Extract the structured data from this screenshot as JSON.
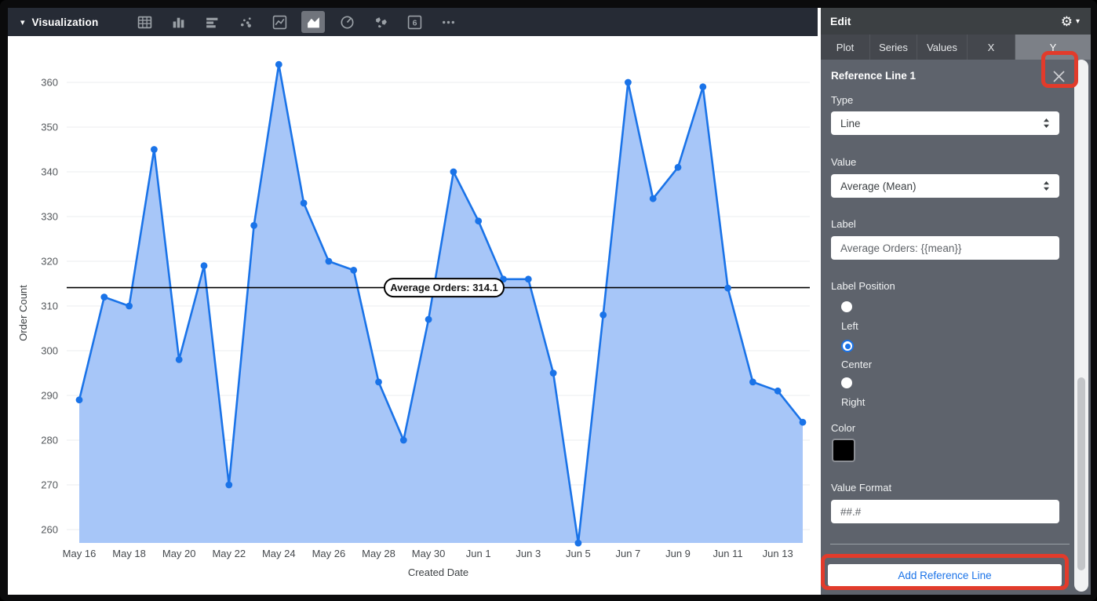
{
  "toolbar": {
    "title": "Visualization",
    "collapse_caret": "▾",
    "chart_type_icons": [
      {
        "name": "table-icon",
        "selected": false
      },
      {
        "name": "bar-chart-icon",
        "selected": false
      },
      {
        "name": "row-chart-icon",
        "selected": false
      },
      {
        "name": "scatter-chart-icon",
        "selected": false
      },
      {
        "name": "line-chart-icon",
        "selected": false
      },
      {
        "name": "area-chart-icon",
        "selected": true
      },
      {
        "name": "pie-chart-icon",
        "selected": false
      },
      {
        "name": "map-chart-icon",
        "selected": false
      },
      {
        "name": "single-value-icon",
        "selected": false
      },
      {
        "name": "more-options-icon",
        "selected": false
      }
    ]
  },
  "panel": {
    "title": "Edit",
    "gear_icon": "⚙",
    "gear_caret": "▾",
    "tabs": [
      {
        "label": "Plot",
        "selected": false
      },
      {
        "label": "Series",
        "selected": false
      },
      {
        "label": "Values",
        "selected": false
      },
      {
        "label": "X",
        "selected": false
      },
      {
        "label": "Y",
        "selected": true
      }
    ],
    "reference_line": {
      "section_title": "Reference Line 1",
      "type_label": "Type",
      "type_value": "Line",
      "value_label": "Value",
      "value_value": "Average (Mean)",
      "label_label": "Label",
      "label_value": "Average Orders: {{mean}}",
      "position_label": "Label Position",
      "position_options": [
        "Left",
        "Center",
        "Right"
      ],
      "position_selected": "Center",
      "color_label": "Color",
      "color_value": "#000000",
      "format_label": "Value Format",
      "format_value": "##.#"
    },
    "add_button_label": "Add Reference Line"
  },
  "chart_data": {
    "type": "area",
    "x": [
      "May 16",
      "May 17",
      "May 18",
      "May 19",
      "May 20",
      "May 21",
      "May 22",
      "May 23",
      "May 24",
      "May 25",
      "May 26",
      "May 27",
      "May 28",
      "May 29",
      "May 30",
      "May 31",
      "Jun 1",
      "Jun 2",
      "Jun 3",
      "Jun 4",
      "Jun 5",
      "Jun 6",
      "Jun 7",
      "Jun 8",
      "Jun 9",
      "Jun 10",
      "Jun 11",
      "Jun 12",
      "Jun 13",
      "Jun 14"
    ],
    "values": [
      289,
      312,
      310,
      345,
      298,
      319,
      270,
      328,
      364,
      333,
      320,
      318,
      293,
      280,
      307,
      340,
      329,
      316,
      316,
      295,
      257,
      308,
      360,
      334,
      341,
      359,
      314,
      293,
      291,
      284
    ],
    "x_tick_labels": [
      "May 16",
      "May 18",
      "May 20",
      "May 22",
      "May 24",
      "May 26",
      "May 28",
      "May 30",
      "Jun 1",
      "Jun 3",
      "Jun 5",
      "Jun 7",
      "Jun 9",
      "Jun 11",
      "Jun 13"
    ],
    "xlabel": "Created Date",
    "ylabel": "Order Count",
    "yticks": [
      260,
      270,
      280,
      290,
      300,
      310,
      320,
      330,
      340,
      350,
      360
    ],
    "ylim": [
      257,
      366
    ],
    "grid": true,
    "legend": "none",
    "series_color": "#1a73e8",
    "fill_color": "#a7c6f8",
    "reference_line": {
      "value": 314.1,
      "label": "Average Orders: 314.1",
      "color": "#000000"
    }
  },
  "annotations": {
    "highlight_color": "#e23b2b",
    "targets": [
      "close-reference-line-button",
      "add-reference-line-button"
    ]
  }
}
